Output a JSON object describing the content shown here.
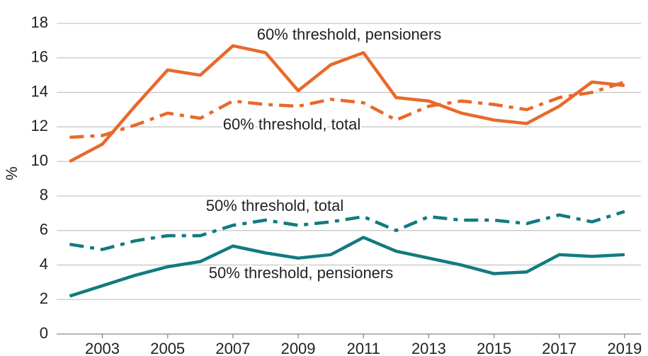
{
  "chart_data": {
    "type": "line",
    "ylabel": "%",
    "x": [
      2002,
      2003,
      2004,
      2005,
      2006,
      2007,
      2008,
      2009,
      2010,
      2011,
      2012,
      2013,
      2014,
      2015,
      2016,
      2017,
      2018,
      2019
    ],
    "series": [
      {
        "name": "60% threshold, pensioners",
        "color": "#e8692b",
        "dash": "solid",
        "values": [
          10.0,
          11.0,
          13.2,
          15.3,
          15.0,
          16.7,
          16.3,
          14.1,
          15.6,
          16.3,
          13.7,
          13.5,
          12.8,
          12.4,
          12.2,
          13.2,
          14.6,
          14.4
        ]
      },
      {
        "name": "60% threshold, total",
        "color": "#e8692b",
        "dash": "dashdot",
        "values": [
          11.4,
          11.5,
          12.1,
          12.8,
          12.5,
          13.5,
          13.3,
          13.2,
          13.6,
          13.4,
          12.4,
          13.2,
          13.5,
          13.3,
          13.0,
          13.7,
          14.0,
          14.6
        ]
      },
      {
        "name": "50% threshold, total",
        "color": "#127a80",
        "dash": "dashdot",
        "values": [
          5.2,
          4.9,
          5.4,
          5.7,
          5.7,
          6.3,
          6.6,
          6.3,
          6.5,
          6.8,
          6.0,
          6.8,
          6.6,
          6.6,
          6.4,
          6.9,
          6.5,
          7.1
        ]
      },
      {
        "name": "50% threshold, pensioners",
        "color": "#127a80",
        "dash": "solid",
        "values": [
          2.2,
          2.8,
          3.4,
          3.9,
          4.2,
          5.1,
          4.7,
          4.4,
          4.6,
          5.6,
          4.8,
          4.4,
          4.0,
          3.5,
          3.6,
          4.6,
          4.5,
          4.6
        ]
      }
    ],
    "xlim": [
      2001.6,
      2019.5
    ],
    "xticks": [
      2003,
      2005,
      2007,
      2009,
      2011,
      2013,
      2015,
      2017,
      2019
    ],
    "ylim": [
      0,
      18
    ],
    "yticks": [
      0,
      2,
      4,
      6,
      8,
      10,
      12,
      14,
      16,
      18
    ],
    "grid": true
  }
}
